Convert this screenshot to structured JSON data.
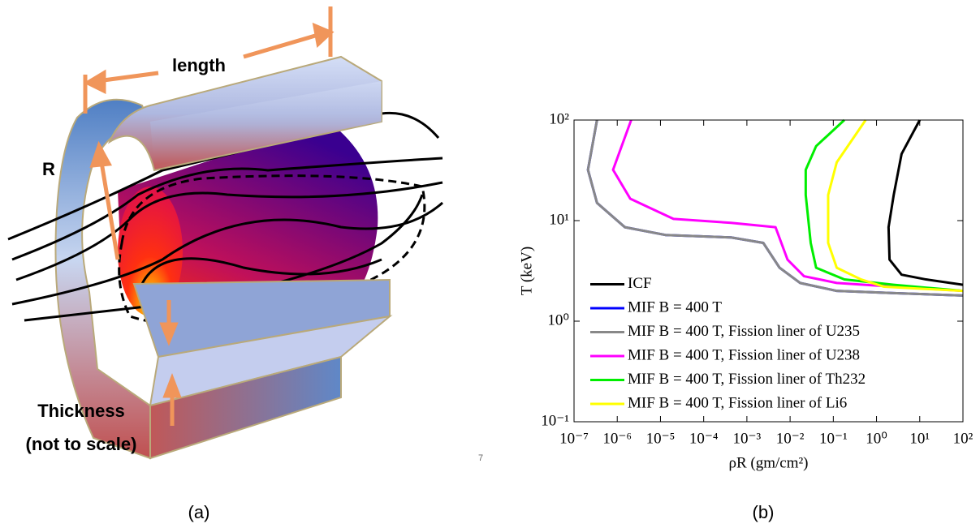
{
  "diagram": {
    "length": "length",
    "radius": "R",
    "thickness": "Thickness",
    "note": "(not to scale)",
    "caption_a": "(a)",
    "caption_b": "(b)",
    "page_number": "7"
  },
  "chart_data": {
    "type": "line",
    "xlabel": "ρR (gm/cm²)",
    "ylabel": "T (keV)",
    "xscale": "log",
    "yscale": "log",
    "grid": false,
    "legend": "lower left",
    "xlim": [
      1e-07,
      100
    ],
    "ylim": [
      0.1,
      100
    ],
    "xticks": [
      {
        "value": 1e-07,
        "label": "10⁻⁷"
      },
      {
        "value": 1e-06,
        "label": "10⁻⁶"
      },
      {
        "value": 1e-05,
        "label": "10⁻⁵"
      },
      {
        "value": 0.0001,
        "label": "10⁻⁴"
      },
      {
        "value": 0.001,
        "label": "10⁻³"
      },
      {
        "value": 0.01,
        "label": "10⁻²"
      },
      {
        "value": 0.1,
        "label": "10⁻¹"
      },
      {
        "value": 1,
        "label": "10⁰"
      },
      {
        "value": 10,
        "label": "10¹"
      },
      {
        "value": 100,
        "label": "10²"
      }
    ],
    "yticks": [
      {
        "value": 0.1,
        "label": "10⁻¹"
      },
      {
        "value": 1,
        "label": "10⁰"
      },
      {
        "value": 10,
        "label": "10¹"
      },
      {
        "value": 100,
        "label": "10²"
      }
    ],
    "series": [
      {
        "name": "ICF",
        "color": "#000000",
        "x": [
          10,
          3.8,
          2.5,
          1.9,
          2.0,
          3.8,
          14,
          100
        ],
        "values": [
          100,
          46,
          18,
          8.6,
          4.1,
          2.9,
          2.6,
          2.3
        ]
      },
      {
        "name": "MIF B = 400 T",
        "color": "#0000ff",
        "x": [
          3.4e-07,
          2.1e-07,
          3.4e-07,
          1.5e-06,
          1.3e-05,
          0.00043,
          0.0024,
          0.0057,
          0.017,
          0.12,
          2.5,
          100
        ],
        "values": [
          100,
          32,
          15,
          8.6,
          7.2,
          6.8,
          6,
          3.4,
          2.4,
          2.0,
          1.9,
          1.8
        ]
      },
      {
        "name": "MIF B = 400 T, Fission liner of U235",
        "color": "#888888",
        "x": [
          3.4e-07,
          2.1e-07,
          3.4e-07,
          1.5e-06,
          1.3e-05,
          0.00043,
          0.0024,
          0.0057,
          0.017,
          0.12,
          2.5,
          100
        ],
        "values": [
          100,
          32,
          15,
          8.6,
          7.2,
          6.8,
          6,
          3.4,
          2.4,
          2.0,
          1.9,
          1.8
        ]
      },
      {
        "name": "MIF B = 400 T, Fission liner of U238",
        "color": "#ff00ff",
        "x": [
          2.1e-06,
          8e-07,
          2e-06,
          2e-05,
          0.00043,
          0.0046,
          0.0087,
          0.021,
          0.12,
          2.5,
          100
        ],
        "values": [
          100,
          32,
          16.5,
          10.4,
          9.5,
          8.6,
          4.1,
          2.8,
          2.4,
          2.2,
          2.0
        ]
      },
      {
        "name": "MIF B = 400 T, Fission liner of Th232",
        "color": "#00ee00",
        "x": [
          0.18,
          0.04,
          0.023,
          0.023,
          0.03,
          0.04,
          0.18,
          2.5,
          100
        ],
        "values": [
          100,
          55,
          32,
          18,
          6,
          3.4,
          2.6,
          2.3,
          2.0
        ]
      },
      {
        "name": "MIF B = 400 T, Fission liner of Li6",
        "color": "#ffff00",
        "x": [
          0.56,
          0.12,
          0.076,
          0.076,
          0.12,
          0.44,
          1.5,
          100
        ],
        "values": [
          100,
          38,
          18,
          6,
          3.4,
          2.6,
          2.2,
          2.0
        ]
      }
    ]
  }
}
